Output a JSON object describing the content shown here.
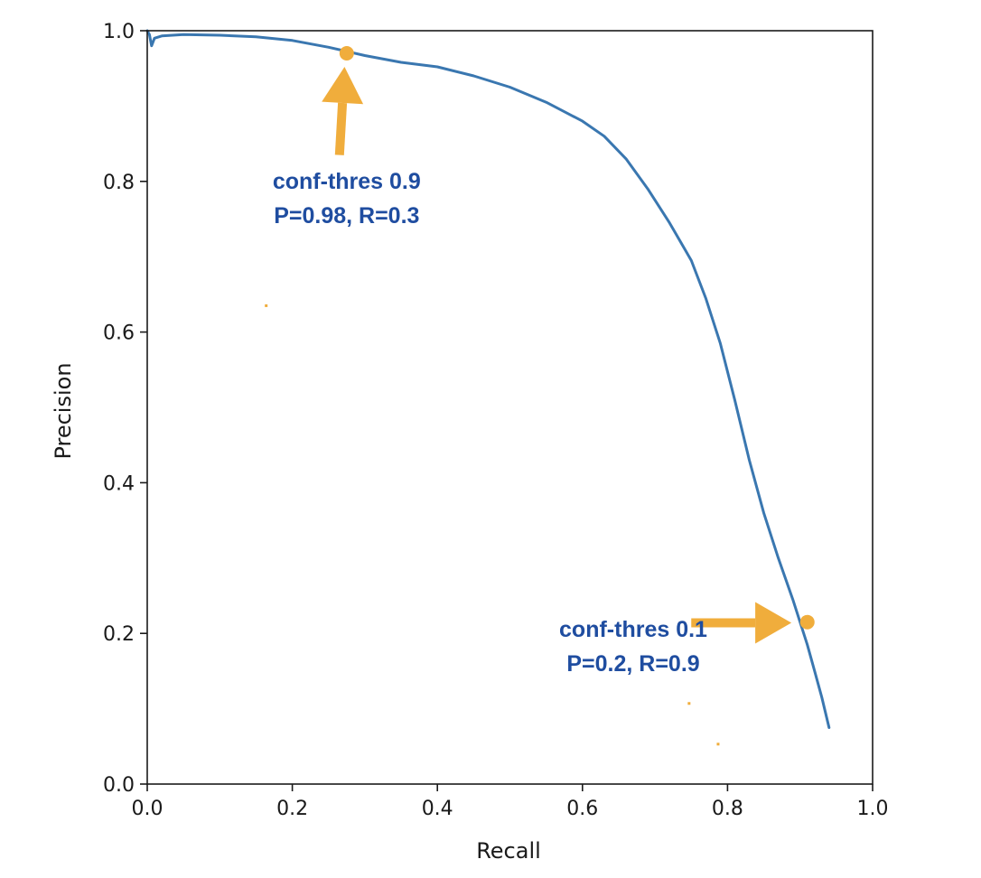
{
  "chart_data": {
    "type": "line",
    "title": "",
    "xlabel": "Recall",
    "ylabel": "Precision",
    "xlim": [
      0.0,
      1.0
    ],
    "ylim": [
      0.0,
      1.0
    ],
    "grid": false,
    "legend": "none",
    "xticks": [
      0.0,
      0.2,
      0.4,
      0.6,
      0.8,
      1.0
    ],
    "yticks": [
      0.0,
      0.2,
      0.4,
      0.6,
      0.8,
      1.0
    ],
    "xtick_labels": [
      "0.0",
      "0.2",
      "0.4",
      "0.6",
      "0.8",
      "1.0"
    ],
    "ytick_labels": [
      "0.0",
      "0.2",
      "0.4",
      "0.6",
      "0.8",
      "1.0"
    ],
    "series": [
      {
        "name": "precision-recall",
        "color": "#3a77b0",
        "x": [
          0.0,
          0.003,
          0.006,
          0.01,
          0.02,
          0.05,
          0.1,
          0.15,
          0.2,
          0.25,
          0.3,
          0.35,
          0.4,
          0.45,
          0.5,
          0.55,
          0.6,
          0.63,
          0.66,
          0.69,
          0.72,
          0.75,
          0.77,
          0.79,
          0.81,
          0.83,
          0.85,
          0.87,
          0.89,
          0.9,
          0.91,
          0.92,
          0.93,
          0.94
        ],
        "y": [
          1.0,
          0.995,
          0.98,
          0.99,
          0.993,
          0.995,
          0.994,
          0.992,
          0.987,
          0.978,
          0.967,
          0.958,
          0.952,
          0.94,
          0.925,
          0.905,
          0.88,
          0.86,
          0.83,
          0.79,
          0.745,
          0.695,
          0.645,
          0.585,
          0.51,
          0.43,
          0.36,
          0.3,
          0.245,
          0.215,
          0.185,
          0.15,
          0.115,
          0.075
        ]
      }
    ],
    "annotations": [
      {
        "name": "high-threshold",
        "line1": "conf-thres 0.9",
        "line2": "P=0.98, R=0.3",
        "point": [
          0.275,
          0.97
        ],
        "label_at": [
          0.275,
          0.8
        ],
        "arrow_from": [
          0.265,
          0.835
        ],
        "arrow_to": [
          0.272,
          0.952
        ],
        "arrow_direction": "up"
      },
      {
        "name": "low-threshold",
        "line1": "conf-thres 0.1",
        "line2": "P=0.2, R=0.9",
        "point": [
          0.91,
          0.215
        ],
        "label_at": [
          0.67,
          0.205
        ],
        "arrow_from": [
          0.75,
          0.214
        ],
        "arrow_to": [
          0.888,
          0.214
        ],
        "arrow_direction": "right"
      }
    ],
    "stray_marks": [
      {
        "x": 0.164,
        "y": 0.635
      },
      {
        "x": 0.747,
        "y": 0.107
      },
      {
        "x": 0.787,
        "y": 0.053
      }
    ],
    "line_color": "#3a77b0",
    "accent_color": "#f0ad3c",
    "annotation_text_color": "#1f4da0"
  }
}
